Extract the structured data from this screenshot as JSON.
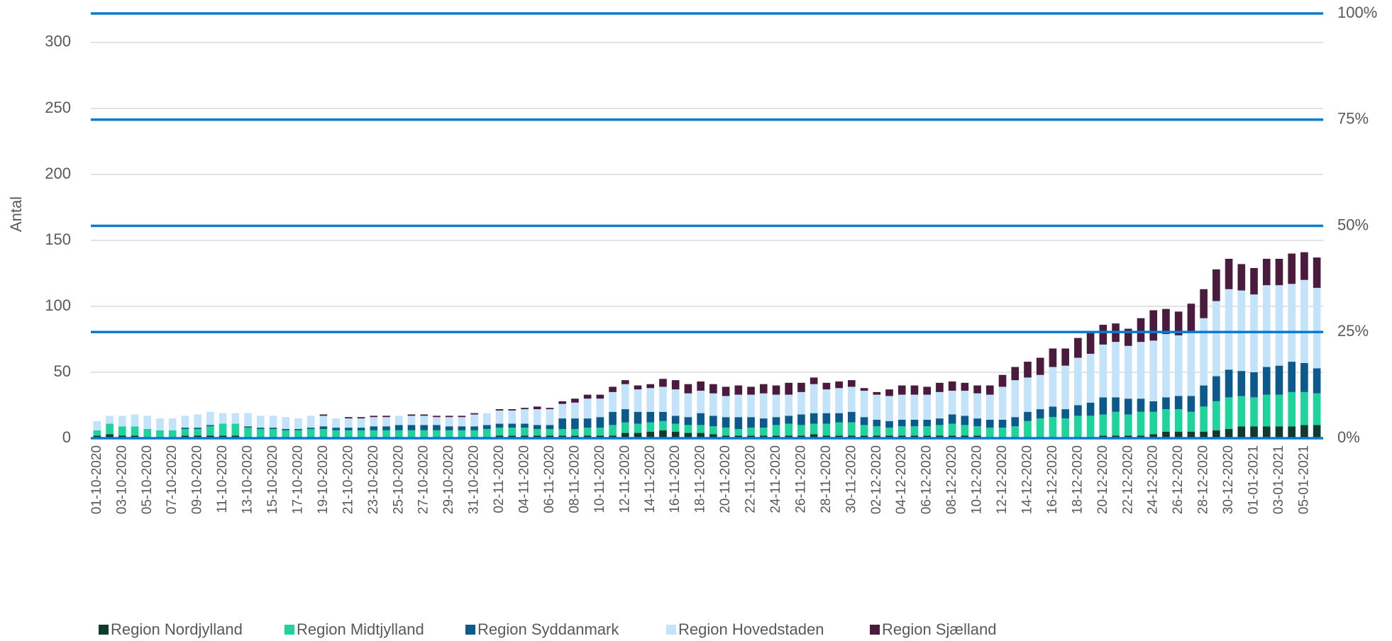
{
  "chart_data": {
    "type": "stacked_bar",
    "ylabel": "Antal",
    "categories": [
      "01-10-2020",
      null,
      "03-10-2020",
      null,
      "05-10-2020",
      null,
      "07-10-2020",
      null,
      "09-10-2020",
      null,
      "11-10-2020",
      null,
      "13-10-2020",
      null,
      "15-10-2020",
      null,
      "17-10-2020",
      null,
      "19-10-2020",
      null,
      "21-10-2020",
      null,
      "23-10-2020",
      null,
      "25-10-2020",
      null,
      "27-10-2020",
      null,
      "29-10-2020",
      null,
      "31-10-2020",
      null,
      "02-11-2020",
      null,
      "04-11-2020",
      null,
      "06-11-2020",
      null,
      "08-11-2020",
      null,
      "10-11-2020",
      null,
      "12-11-2020",
      null,
      "14-11-2020",
      null,
      "16-11-2020",
      null,
      "18-11-2020",
      null,
      "20-11-2020",
      null,
      "22-11-2020",
      null,
      "24-11-2020",
      null,
      "26-11-2020",
      null,
      "28-11-2020",
      null,
      "30-11-2020",
      null,
      "02-12-2020",
      null,
      "04-12-2020",
      null,
      "06-12-2020",
      null,
      "08-12-2020",
      null,
      "10-12-2020",
      null,
      "12-12-2020",
      null,
      "14-12-2020",
      null,
      "16-12-2020",
      null,
      "18-12-2020",
      null,
      "20-12-2020",
      null,
      "22-12-2020",
      null,
      "24-12-2020",
      null,
      "26-12-2020",
      null,
      "28-12-2020",
      null,
      "30-12-2020",
      null,
      "01-01-2021",
      null,
      "03-01-2021",
      null,
      "05-01-2021",
      null
    ],
    "series": [
      {
        "name": "Region Nordjylland",
        "color": "#0e3b2d",
        "values": [
          2,
          3,
          2,
          2,
          1,
          1,
          1,
          2,
          2,
          2,
          2,
          2,
          1,
          1,
          1,
          1,
          1,
          1,
          1,
          1,
          1,
          1,
          1,
          1,
          1,
          1,
          1,
          1,
          1,
          1,
          1,
          1,
          2,
          2,
          2,
          2,
          2,
          2,
          2,
          2,
          2,
          2,
          4,
          4,
          5,
          6,
          5,
          4,
          4,
          3,
          2,
          2,
          2,
          2,
          2,
          2,
          2,
          3,
          2,
          2,
          2,
          2,
          2,
          2,
          2,
          2,
          2,
          2,
          2,
          2,
          2,
          1,
          1,
          1,
          1,
          1,
          1,
          1,
          1,
          1,
          2,
          2,
          2,
          2,
          3,
          5,
          5,
          5,
          5,
          6,
          7,
          9,
          9,
          9,
          9,
          9,
          10,
          10
        ]
      },
      {
        "name": "Region Midtjylland",
        "color": "#1fd49c",
        "values": [
          4,
          8,
          7,
          7,
          6,
          5,
          5,
          5,
          5,
          7,
          9,
          9,
          7,
          6,
          6,
          5,
          5,
          6,
          6,
          5,
          5,
          5,
          5,
          5,
          5,
          5,
          5,
          5,
          5,
          5,
          5,
          6,
          6,
          6,
          6,
          5,
          5,
          5,
          5,
          6,
          6,
          8,
          8,
          7,
          7,
          7,
          6,
          6,
          6,
          6,
          6,
          5,
          6,
          6,
          8,
          9,
          8,
          8,
          9,
          10,
          10,
          8,
          7,
          6,
          7,
          7,
          7,
          8,
          9,
          8,
          7,
          7,
          7,
          8,
          12,
          14,
          15,
          14,
          16,
          16,
          16,
          18,
          16,
          18,
          17,
          17,
          17,
          15,
          19,
          22,
          24,
          23,
          22,
          24,
          24,
          26,
          25,
          24
        ]
      },
      {
        "name": "Region Syddanmark",
        "color": "#0b5a8b",
        "values": [
          0,
          0,
          0,
          0,
          0,
          0,
          0,
          1,
          1,
          1,
          0,
          0,
          1,
          1,
          1,
          1,
          1,
          1,
          2,
          2,
          2,
          2,
          3,
          3,
          4,
          4,
          4,
          4,
          3,
          3,
          3,
          3,
          3,
          3,
          3,
          3,
          3,
          8,
          8,
          7,
          8,
          10,
          10,
          9,
          8,
          7,
          6,
          6,
          9,
          8,
          8,
          9,
          8,
          7,
          6,
          6,
          8,
          8,
          8,
          7,
          8,
          6,
          5,
          5,
          5,
          5,
          5,
          5,
          7,
          7,
          6,
          6,
          6,
          7,
          7,
          7,
          8,
          7,
          8,
          10,
          13,
          11,
          12,
          10,
          8,
          9,
          10,
          12,
          16,
          19,
          21,
          19,
          19,
          21,
          22,
          23,
          22,
          19
        ]
      },
      {
        "name": "Region Hovedstaden",
        "color": "#c2e3fa",
        "values": [
          7,
          6,
          8,
          9,
          10,
          9,
          9,
          9,
          10,
          10,
          8,
          8,
          10,
          9,
          9,
          9,
          8,
          9,
          8,
          7,
          7,
          7,
          7,
          7,
          7,
          7,
          7,
          6,
          7,
          7,
          9,
          9,
          10,
          10,
          11,
          12,
          12,
          11,
          12,
          15,
          14,
          15,
          19,
          17,
          18,
          19,
          20,
          18,
          17,
          17,
          16,
          17,
          17,
          19,
          17,
          16,
          17,
          22,
          18,
          19,
          19,
          20,
          19,
          19,
          19,
          19,
          19,
          20,
          18,
          19,
          19,
          19,
          25,
          28,
          26,
          26,
          30,
          33,
          36,
          37,
          40,
          42,
          40,
          43,
          46,
          48,
          46,
          48,
          51,
          57,
          61,
          61,
          59,
          62,
          61,
          59,
          63,
          61
        ]
      },
      {
        "name": "Region Sjælland",
        "color": "#4a1b3c",
        "values": [
          0,
          0,
          0,
          0,
          0,
          0,
          0,
          0,
          0,
          0,
          0,
          0,
          0,
          0,
          0,
          0,
          0,
          0,
          1,
          0,
          1,
          1,
          1,
          1,
          0,
          1,
          1,
          1,
          1,
          1,
          1,
          0,
          1,
          1,
          1,
          2,
          1,
          2,
          3,
          3,
          3,
          4,
          3,
          3,
          3,
          6,
          7,
          7,
          7,
          7,
          7,
          7,
          6,
          7,
          7,
          9,
          7,
          5,
          5,
          5,
          5,
          2,
          2,
          5,
          7,
          7,
          6,
          7,
          7,
          6,
          6,
          7,
          9,
          10,
          12,
          13,
          14,
          13,
          15,
          16,
          15,
          14,
          13,
          18,
          23,
          19,
          18,
          22,
          22,
          24,
          23,
          20,
          20,
          20,
          20,
          23,
          21,
          23
        ]
      }
    ],
    "ylim": [
      0,
      322
    ],
    "yticks": [
      0,
      50,
      100,
      150,
      200,
      250,
      300
    ],
    "grid": true,
    "y2lim": [
      0,
      100
    ],
    "y2ticks": [
      {
        "value": 0,
        "label": "0%"
      },
      {
        "value": 25,
        "label": "25%"
      },
      {
        "value": 50,
        "label": "50%"
      },
      {
        "value": 75,
        "label": "75%"
      },
      {
        "value": 100,
        "label": "100%"
      }
    ],
    "y2_color": "#0a7bd1",
    "legend": "bottom"
  }
}
